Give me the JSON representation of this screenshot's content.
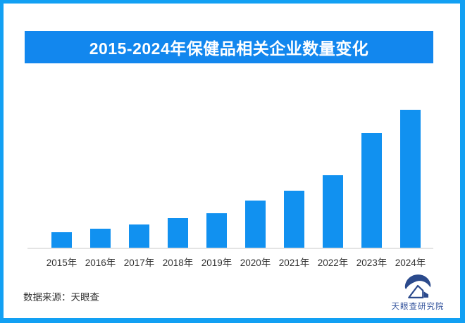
{
  "banner": {
    "title": "2015-2024年保健品相关企业数量变化"
  },
  "chart_data": {
    "type": "bar",
    "title": "2015-2024年保健品相关企业数量变化",
    "categories": [
      "2015年",
      "2016年",
      "2017年",
      "2018年",
      "2019年",
      "2020年",
      "2021年",
      "2022年",
      "2023年",
      "2024年"
    ],
    "values": [
      11.2,
      13.8,
      16.8,
      21.4,
      25.0,
      34.2,
      41.3,
      52.6,
      83.2,
      100
    ],
    "units": "relative height, 2024 = 100 (no y-axis or value labels shown in image)",
    "xlabel": "",
    "ylabel": "",
    "ylim": [
      0,
      100
    ],
    "gridlines": false,
    "legend_position": "none",
    "value_labels_shown": false,
    "bar_color": "#1191f0"
  },
  "footer": {
    "source_text": "数据来源：天眼查",
    "logo_text": "天眼查研究院",
    "logo_icon": "tianyancha-eye-mountain-logo"
  },
  "colors": {
    "frame_border": "#12a0f3",
    "banner_bg": "#1287ee",
    "banner_text": "#ffffff",
    "bar": "#1191f0",
    "axis_line": "#e4e4e4",
    "tick_text": "#333333",
    "source_text": "#333333",
    "logo_navy": "#2b4a8c",
    "logo_text": "#33539c"
  }
}
